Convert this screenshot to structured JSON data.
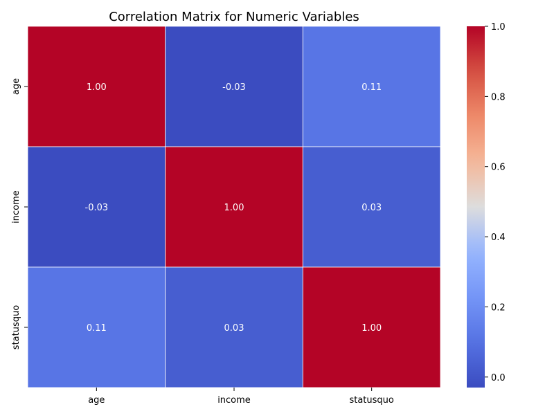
{
  "chart_data": {
    "type": "heatmap",
    "title": "Correlation Matrix for Numeric Variables",
    "x_categories": [
      "age",
      "income",
      "statusquo"
    ],
    "y_categories": [
      "age",
      "income",
      "statusquo"
    ],
    "values": [
      [
        1.0,
        -0.03,
        0.11
      ],
      [
        -0.03,
        1.0,
        0.03
      ],
      [
        0.11,
        0.03,
        1.0
      ]
    ],
    "annotations": [
      [
        "1.00",
        "-0.03",
        "0.11"
      ],
      [
        "-0.03",
        "1.00",
        "0.03"
      ],
      [
        "0.11",
        "0.03",
        "1.00"
      ]
    ],
    "colormap": "coolwarm",
    "color_range": [
      -0.03,
      1.0
    ],
    "colorbar_ticks": [
      0.0,
      0.2,
      0.4,
      0.6,
      0.8,
      1.0
    ],
    "colorbar_tick_labels": [
      "0.0",
      "0.2",
      "0.4",
      "0.6",
      "0.8",
      "1.0"
    ],
    "annotation_color": "#ffffff",
    "grid_line_color": "#ffffff"
  }
}
